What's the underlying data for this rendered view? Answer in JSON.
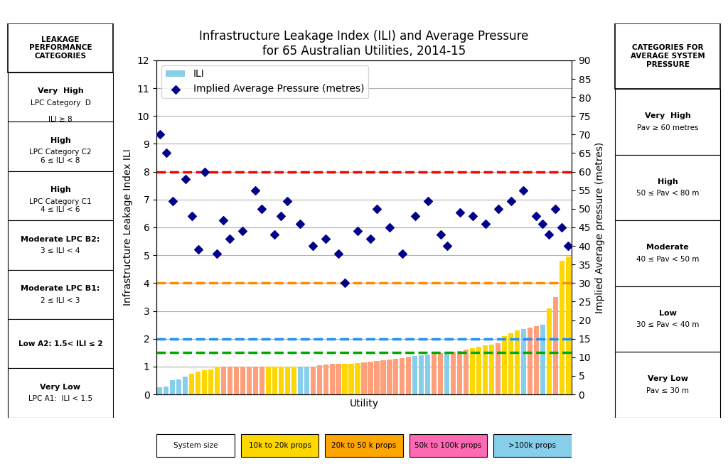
{
  "chart_data": {
    "type": "bar",
    "title": "Infrastructure Leakage Index (ILI) and Average Pressure\nfor 65 Australian Utilities, 2014-15",
    "x_label": "Utility",
    "y_label": "Infrastructure Leakage Index ILI",
    "y2_label": "Implied Average pressure (metres)",
    "categories": [
      null,
      null,
      null,
      null,
      null,
      null,
      null,
      null,
      null,
      null,
      null,
      null,
      null,
      null,
      null,
      null,
      null,
      null,
      null,
      null,
      null,
      null,
      null,
      null,
      null,
      null,
      null,
      null,
      null,
      null,
      null,
      null,
      null,
      null,
      null,
      null,
      null,
      null,
      null,
      null,
      null,
      null,
      null,
      null,
      null,
      null,
      null,
      null,
      null,
      null,
      null,
      null,
      null,
      null,
      null,
      null,
      null,
      null,
      null,
      null,
      null,
      null,
      null,
      null,
      null
    ],
    "ylim": [
      0,
      12.0
    ],
    "yticks": [
      0,
      1,
      2,
      3,
      4,
      5,
      6,
      7,
      8,
      9,
      10,
      11,
      12
    ],
    "y2lim": [
      0,
      90
    ],
    "y2ticks": [
      0,
      5,
      10,
      15,
      20,
      25,
      30,
      35,
      40,
      45,
      50,
      55,
      60,
      65,
      70,
      75,
      80,
      85,
      90
    ],
    "tick_labels": "y",
    "grid": true,
    "legend": "upper left",
    "series": [
      {
        "name": "ILI",
        "type": "bar",
        "colors": [
          "#87CEEB",
          "#87CEEB",
          "#87CEEB",
          "#87CEEB",
          "#87CEEB",
          "#FFD700",
          "#FFD700",
          "#FFD700",
          "#FFD700",
          "#FFD700",
          "#FFA07A",
          "#FFA07A",
          "#FFA07A",
          "#FFA07A",
          "#FFA07A",
          "#FFA07A",
          "#FFA07A",
          "#FFD700",
          "#FFD700",
          "#FFD700",
          "#FFD700",
          "#FFD700",
          "#87CEEB",
          "#87CEEB",
          "#FFA07A",
          "#FFA07A",
          "#FFA07A",
          "#FFA07A",
          "#FFA07A",
          "#FFD700",
          "#FFD700",
          "#FFD700",
          "#FFA07A",
          "#FFA07A",
          "#FFA07A",
          "#FFA07A",
          "#FFA07A",
          "#FFA07A",
          "#FFA07A",
          "#FFA07A",
          "#87CEEB",
          "#87CEEB",
          "#87CEEB",
          "#FFA07A",
          "#FFA07A",
          "#87CEEB",
          "#FFA07A",
          "#FFA07A",
          "#FFA07A",
          "#FFD700",
          "#FFD700",
          "#FFD700",
          "#FFD700",
          "#FFA07A",
          "#FFD700",
          "#FFD700",
          "#FFD700",
          "#87CEEB",
          "#FFA07A",
          "#FFA07A",
          "#87CEEB",
          "#FFD700",
          "#FFA07A",
          "#FFD700",
          "#FFD700"
        ],
        "values": [
          0.25,
          0.28,
          0.5,
          0.55,
          0.65,
          0.75,
          0.82,
          0.86,
          0.9,
          1.0,
          1.0,
          1.0,
          1.0,
          1.0,
          1.0,
          1.0,
          1.0,
          1.0,
          1.0,
          1.0,
          1.0,
          1.0,
          1.0,
          1.0,
          1.0,
          1.05,
          1.08,
          1.1,
          1.1,
          1.1,
          1.1,
          1.12,
          1.15,
          1.18,
          1.2,
          1.22,
          1.25,
          1.28,
          1.3,
          1.35,
          1.38,
          1.4,
          1.42,
          1.45,
          1.48,
          1.5,
          1.52,
          1.55,
          1.6,
          1.65,
          1.7,
          1.75,
          1.8,
          1.85,
          2.1,
          2.2,
          2.3,
          2.35,
          2.4,
          2.45,
          2.5,
          3.1,
          3.5,
          4.8,
          4.95
        ]
      },
      {
        "name": "Implied Average Pressure (metres)",
        "type": "scatter",
        "axis": "y2",
        "color": "#00008B",
        "marker": "diamond",
        "values": [
          70,
          65,
          52,
          null,
          58,
          48,
          39,
          60,
          null,
          38,
          47,
          42,
          null,
          44,
          null,
          55,
          50,
          null,
          43,
          48,
          52,
          null,
          46,
          null,
          40,
          null,
          42,
          null,
          38,
          30,
          null,
          44,
          null,
          42,
          50,
          null,
          45,
          null,
          38,
          null,
          48,
          null,
          52,
          null,
          43,
          40,
          null,
          49,
          null,
          48,
          null,
          46,
          null,
          50,
          null,
          52,
          null,
          55,
          null,
          48,
          46,
          43,
          50,
          45,
          40
        ]
      }
    ],
    "reference_lines": [
      {
        "value": 8.0,
        "color": "#FF0000",
        "line_style": "dashed"
      },
      {
        "value": 4.0,
        "color": "#FF8C00",
        "line_style": "dashed"
      },
      {
        "value": 2.0,
        "color": "#1E90FF",
        "line_style": "dashed"
      },
      {
        "value": 1.5,
        "color": "#00AA00",
        "line_style": "dashed"
      }
    ],
    "system_size_legend": {
      "labels": [
        "System size",
        "10k to 20k props",
        "20k to 50 k props",
        "50k to 100k props",
        ">100k props"
      ],
      "colors": [
        "#FFFFFF",
        "#FFD700",
        "#FFA500",
        "#FF69B4",
        "#87CEEB"
      ]
    },
    "left_panel": {
      "title": "LEAKAGE\nPERFORMANCE\nCATEGORIES",
      "categories": [
        {
          "label": "Very  High",
          "sub": "LPC Category  D\n\nILI ≥ 8"
        },
        {
          "label": "High",
          "sub": "LPC Category C2\n6 ≤ ILI < 8"
        },
        {
          "label": "High",
          "sub": "LPC Category C1\n4 ≤ ILI < 6"
        },
        {
          "label": "Moderate LPC B2:",
          "sub": "3 ≤ ILI < 4"
        },
        {
          "label": "Moderate LPC B1:",
          "sub": "2 ≤ ILI < 3"
        },
        {
          "label": "Low A2: 1.5< ILI ≤ 2"
        },
        {
          "label": "Very Low",
          "sub": "LPC A1:  ILI < 1.5"
        }
      ]
    },
    "right_panel": {
      "title": "CATEGORIES FOR\nAVERAGE SYSTEM\nPRESSURE",
      "categories": [
        {
          "label": "Very  High",
          "sub": "Pav ≥ 60 metres"
        },
        {
          "label": "High",
          "sub": "50 ≤ Pav < 80 m"
        },
        {
          "label": "Moderate",
          "sub": "40 ≤ Pav < 50 m"
        },
        {
          "label": "Low",
          "sub": "30 ≤ Pav < 40 m"
        },
        {
          "label": "Very Low",
          "sub": "Pav ≤ 30 m"
        }
      ]
    }
  }
}
